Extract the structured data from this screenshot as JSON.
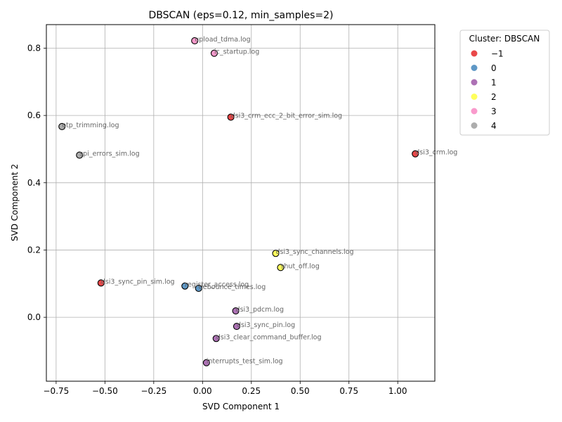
{
  "chart_data": {
    "type": "scatter",
    "title": "DBSCAN (eps=0.12, min_samples=2)",
    "xlabel": "SVD Component 1",
    "ylabel": "SVD Component 2",
    "xlim": [
      -0.8,
      1.19
    ],
    "ylim": [
      -0.19,
      0.87
    ],
    "xticks": [
      -0.75,
      -0.5,
      -0.25,
      0.0,
      0.25,
      0.5,
      0.75,
      1.0
    ],
    "xtick_labels": [
      "−0.75",
      "−0.50",
      "−0.25",
      "0.00",
      "0.25",
      "0.50",
      "0.75",
      "1.00"
    ],
    "yticks": [
      0.0,
      0.2,
      0.4,
      0.6,
      0.8
    ],
    "ytick_labels": [
      "0.0",
      "0.2",
      "0.4",
      "0.6",
      "0.8"
    ],
    "grid": true,
    "legend": {
      "title": "Cluster: DBSCAN",
      "placement": "outside-top-right",
      "entries": [
        {
          "label": "−1",
          "cluster": -1
        },
        {
          "label": "0",
          "cluster": 0
        },
        {
          "label": "1",
          "cluster": 1
        },
        {
          "label": "2",
          "cluster": 2
        },
        {
          "label": "3",
          "cluster": 3
        },
        {
          "label": "4",
          "cluster": 4
        }
      ]
    },
    "cluster_colors": {
      "-1": "#e41a1c",
      "0": "#377eb8",
      "1": "#984ea3",
      "2": "#ffff33",
      "3": "#f781bf",
      "4": "#999999"
    },
    "points": [
      {
        "label": "upload_tdma.log",
        "x": -0.04,
        "y": 0.822,
        "cluster": 3
      },
      {
        "label": "ic_startup.log",
        "x": 0.06,
        "y": 0.785,
        "cluster": 3
      },
      {
        "label": "dsi3_crm_ecc_2_bit_error_sim.log",
        "x": 0.145,
        "y": 0.595,
        "cluster": -1
      },
      {
        "label": "otp_trimming.log",
        "x": -0.72,
        "y": 0.567,
        "cluster": 4
      },
      {
        "label": "spi_errors_sim.log",
        "x": -0.63,
        "y": 0.482,
        "cluster": 4
      },
      {
        "label": "dsi3_crm.log",
        "x": 1.09,
        "y": 0.486,
        "cluster": -1
      },
      {
        "label": "dsi3_sync_channels.log",
        "x": 0.375,
        "y": 0.19,
        "cluster": 2
      },
      {
        "label": "shut_off.log",
        "x": 0.4,
        "y": 0.148,
        "cluster": 2
      },
      {
        "label": "dsi3_sync_pin_sim.log",
        "x": -0.52,
        "y": 0.102,
        "cluster": -1
      },
      {
        "label": "register_access.log",
        "x": -0.09,
        "y": 0.093,
        "cluster": 0
      },
      {
        "label": "debounce_times.log",
        "x": -0.02,
        "y": 0.086,
        "cluster": 0
      },
      {
        "label": "dsi3_pdcm.log",
        "x": 0.17,
        "y": 0.019,
        "cluster": 1
      },
      {
        "label": "dsi3_sync_pin.log",
        "x": 0.175,
        "y": -0.027,
        "cluster": 1
      },
      {
        "label": "dsi3_clear_command_buffer.log",
        "x": 0.07,
        "y": -0.063,
        "cluster": 1
      },
      {
        "label": "interrupts_test_sim.log",
        "x": 0.02,
        "y": -0.135,
        "cluster": 1
      }
    ]
  }
}
